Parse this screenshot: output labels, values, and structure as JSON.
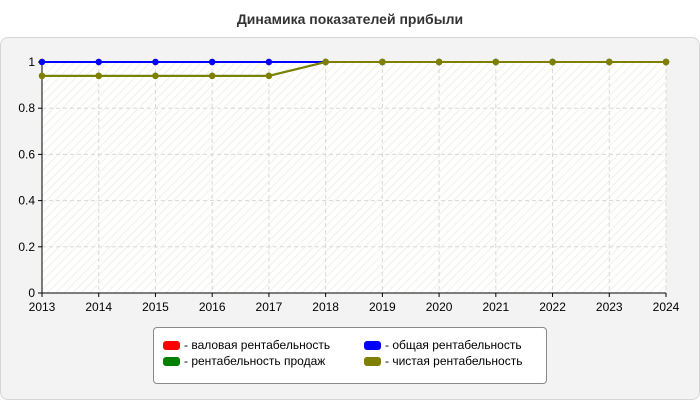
{
  "chart_data": {
    "type": "line",
    "title": "Динамика показателей прибыли",
    "x": [
      "2013",
      "2014",
      "2015",
      "2016",
      "2017",
      "2018",
      "2019",
      "2020",
      "2021",
      "2022",
      "2023",
      "2024"
    ],
    "y_ticks": [
      "0",
      "0.2",
      "0.4",
      "0.6",
      "0.8",
      "1"
    ],
    "ylim": [
      0,
      1
    ],
    "grid": true,
    "legend_position": "bottom",
    "series": [
      {
        "name": "- валовая рентабельность",
        "color": "#ff0000",
        "values": [
          1,
          1,
          1,
          1,
          1,
          1,
          1,
          1,
          1,
          1,
          1,
          1
        ]
      },
      {
        "name": "- общая рентабельность",
        "color": "#0000ff",
        "values": [
          1,
          1,
          1,
          1,
          1,
          1,
          1,
          1,
          1,
          1,
          1,
          1
        ]
      },
      {
        "name": "- рентабельность продаж",
        "color": "#008000",
        "values": [
          0.94,
          0.94,
          0.94,
          0.94,
          0.94,
          1,
          1,
          1,
          1,
          1,
          1,
          1
        ]
      },
      {
        "name": "- чистая рентабельность",
        "color": "#808000",
        "values": [
          0.94,
          0.94,
          0.94,
          0.94,
          0.94,
          1,
          1,
          1,
          1,
          1,
          1,
          1
        ]
      }
    ]
  }
}
